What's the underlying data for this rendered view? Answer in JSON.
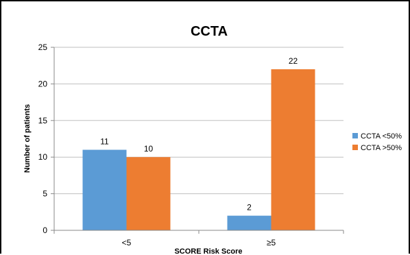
{
  "chart_data": {
    "type": "bar",
    "title": "CCTA",
    "xlabel": "SCORE Risk Score",
    "ylabel": "Number of patients",
    "categories": [
      "<5",
      "≥5"
    ],
    "series": [
      {
        "name": "CCTA <50%",
        "values": [
          11,
          2
        ],
        "color": "#5B9BD5"
      },
      {
        "name": "CCTA >50%",
        "values": [
          10,
          22
        ],
        "color": "#ED7D31"
      }
    ],
    "ylim": [
      0,
      25
    ],
    "yticks": [
      0,
      5,
      10,
      15,
      20,
      25
    ],
    "grid": true,
    "gridColor": "#bfbfbf",
    "axisColor": "#888888",
    "legend_position": "right"
  }
}
